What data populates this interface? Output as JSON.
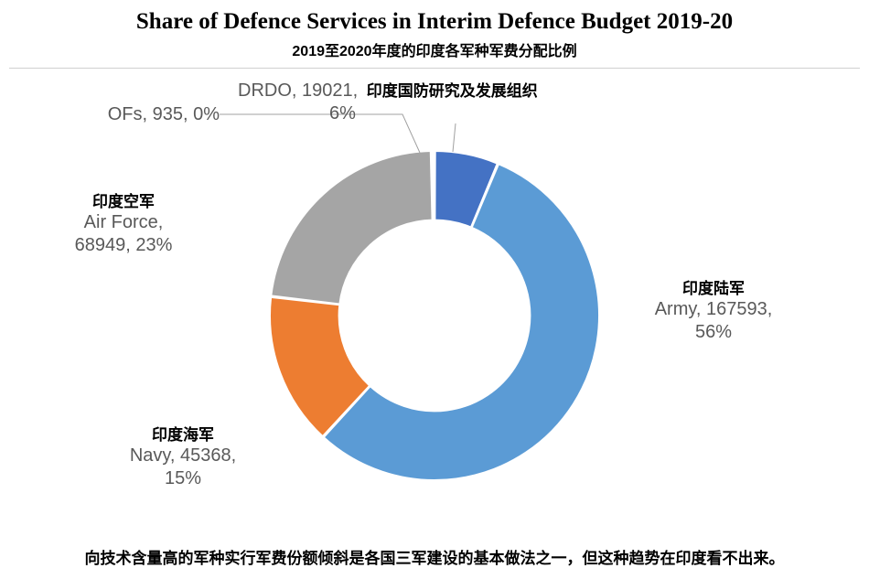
{
  "title": "Share of Defence Services in Interim Defence Budget 2019-20",
  "subtitle": "2019至2020年度的印度各军种军费分配比例",
  "footer": "向技术含量高的军种实行军费份额倾斜是各国三军建设的基本做法之一，但这种趋势在印度看不出来。",
  "chart": {
    "type": "donut",
    "inner_radius_ratio": 0.58,
    "outer_radius": 180,
    "start_angle_deg": -90,
    "background_color": "#ffffff",
    "slices": [
      {
        "key": "drdo",
        "name": "DRDO",
        "value": 19021,
        "pct": "6%",
        "color": "#4472c4",
        "cn_label": "印度国防研究及发展组织"
      },
      {
        "key": "army",
        "name": "Army",
        "value": 167593,
        "pct": "56%",
        "color": "#5b9bd5",
        "cn_label": "印度陆军"
      },
      {
        "key": "navy",
        "name": "Navy",
        "value": 45368,
        "pct": "15%",
        "color": "#ed7d31",
        "cn_label": "印度海军"
      },
      {
        "key": "airforce",
        "name": "Air Force",
        "value": 68949,
        "pct": "23%",
        "color": "#a5a5a5",
        "cn_label": "印度空军"
      },
      {
        "key": "ofs",
        "name": "OFs",
        "value": 935,
        "pct": "0%",
        "color": "#e7e6e6",
        "cn_label": ""
      }
    ],
    "label_fontsize": 20,
    "label_color": "#595959",
    "cn_label_fontsize": 17,
    "cn_label_color": "#000000"
  },
  "labels": {
    "drdo_line1": "DRDO, 19021,",
    "drdo_line2": "6%",
    "drdo_cn": "印度国防研究及发展组织",
    "army_cn": "印度陆军",
    "army_line1": "Army, 167593,",
    "army_line2": "56%",
    "navy_cn": "印度海军",
    "navy_line1": "Navy, 45368,",
    "navy_line2": "15%",
    "airforce_cn": "印度空军",
    "airforce_line1": "Air Force,",
    "airforce_line2": "68949, 23%",
    "ofs_line": "OFs, 935, 0%"
  }
}
